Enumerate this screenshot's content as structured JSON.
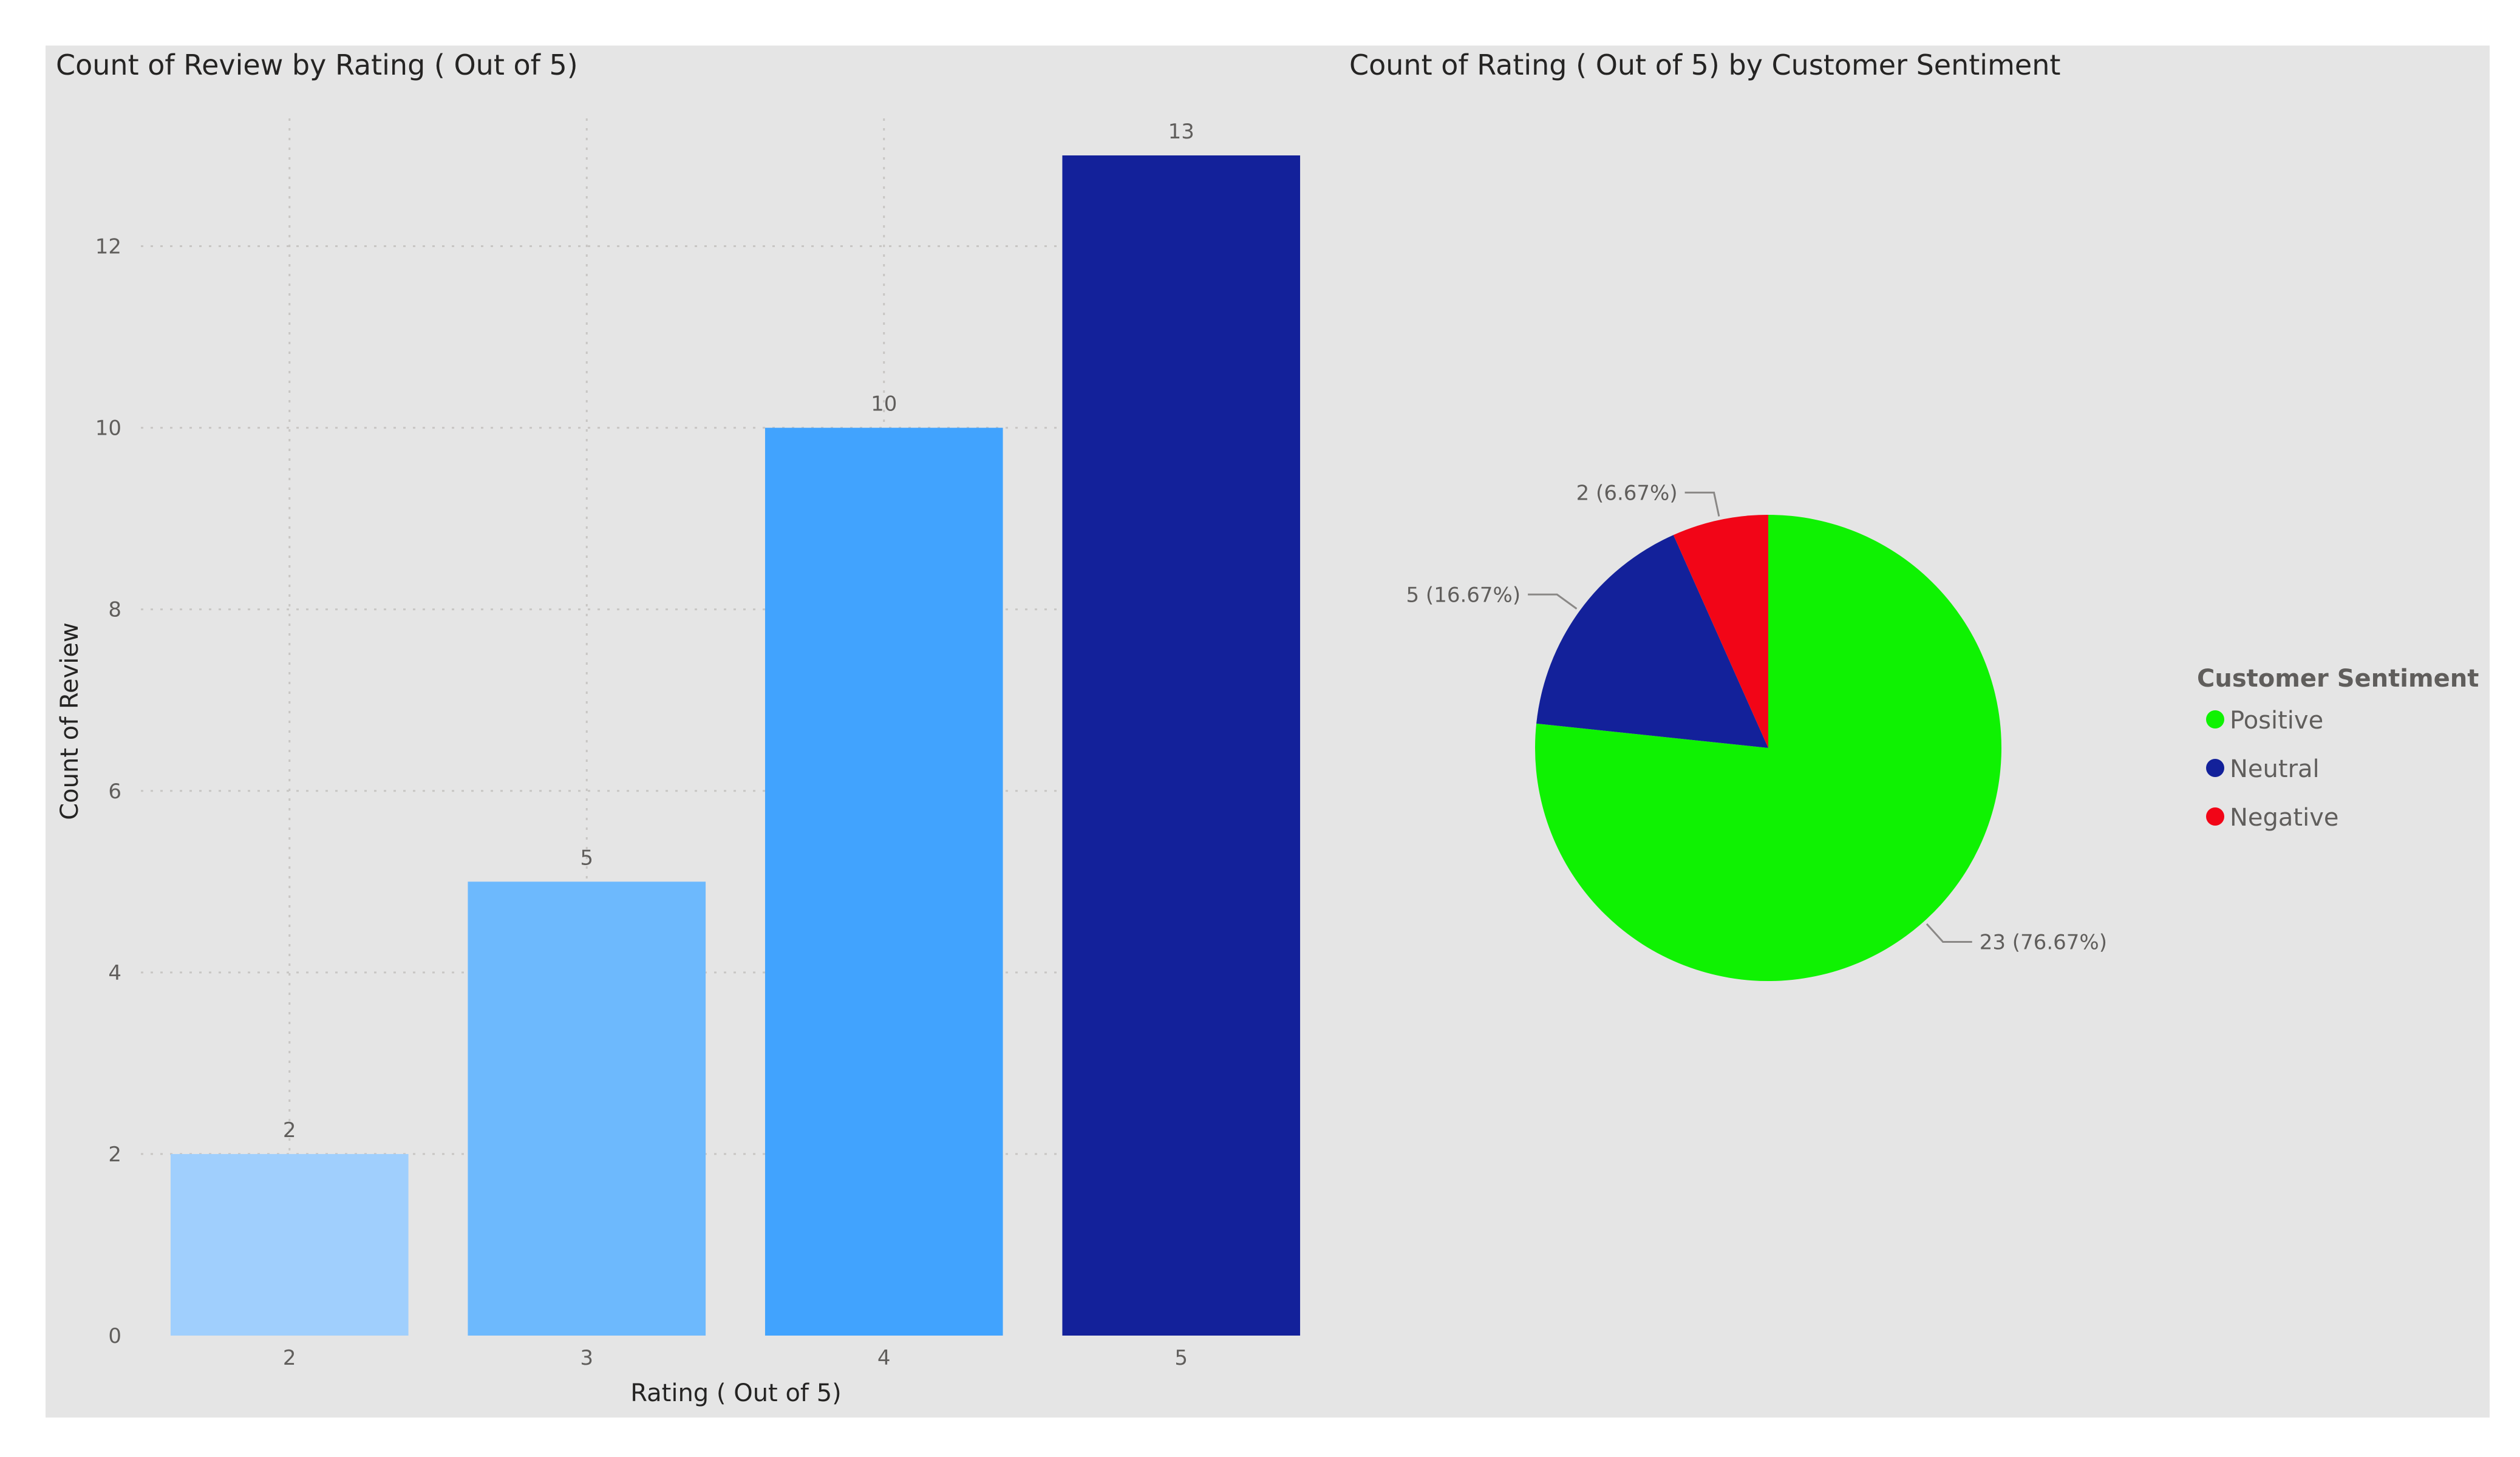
{
  "chart_data": [
    {
      "type": "bar",
      "title": "Count of Review by Rating ( Out of 5)",
      "xlabel": "Rating ( Out of 5)",
      "ylabel": "Count of Review",
      "categories": [
        "2",
        "3",
        "4",
        "5"
      ],
      "values": [
        2,
        5,
        10,
        13
      ],
      "data_labels": [
        "2",
        "5",
        "10",
        "13"
      ],
      "ylim": [
        0,
        13
      ],
      "yticks": [
        "0",
        "2",
        "4",
        "6",
        "8",
        "10",
        "12"
      ],
      "colors": [
        "#a0cffd",
        "#6db9fd",
        "#41a3fe",
        "#13219a"
      ],
      "grid": true
    },
    {
      "type": "pie",
      "title": "Count of Rating ( Out of 5) by Customer Sentiment",
      "legend_title": "Customer Sentiment",
      "legend_position": "right",
      "slices": [
        {
          "name": "Positive",
          "value": 23,
          "label": "23 (76.67%)",
          "color": "#0ff202"
        },
        {
          "name": "Neutral",
          "value": 5,
          "label": "5 (16.67%)",
          "color": "#13219a"
        },
        {
          "name": "Negative",
          "value": 2,
          "label": "2 (6.67%)",
          "color": "#f20517"
        }
      ]
    }
  ],
  "page_colors": {
    "panel_background": "#e5e5e5",
    "page_background": "#ffffff"
  }
}
